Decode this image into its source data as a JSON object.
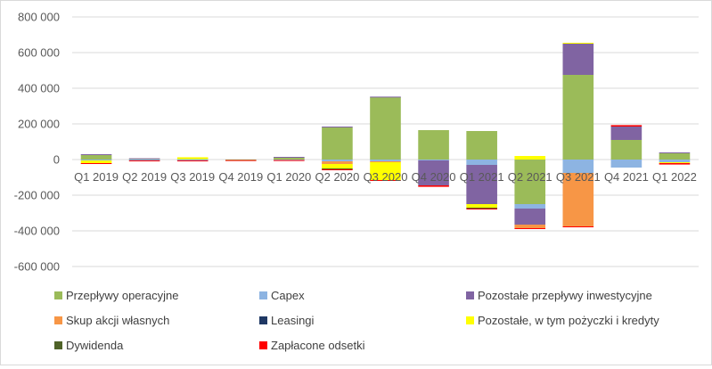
{
  "chart_data": {
    "type": "bar",
    "stacked": true,
    "categories": [
      "Q1 2019",
      "Q2 2019",
      "Q3 2019",
      "Q4 2019",
      "Q1 2020",
      "Q2 2020",
      "Q3 2020",
      "Q4 2020",
      "Q1 2021",
      "Q2 2021",
      "Q3 2021",
      "Q4 2021",
      "Q1 2022"
    ],
    "ylim": [
      -600000,
      800000
    ],
    "yticks": [
      800000,
      600000,
      400000,
      200000,
      0,
      -200000,
      -400000,
      -600000
    ],
    "ytick_labels": [
      "800 000",
      "600 000",
      "400 000",
      "200 000",
      "0",
      "-200 000",
      "-400 000",
      "-600 000"
    ],
    "grid": true,
    "legend_position": "bottom",
    "series": [
      {
        "name": "Przepływy operacyjne",
        "color": "#9bbb59",
        "values": [
          25000,
          2000,
          3000,
          -3000,
          10000,
          180000,
          350000,
          165000,
          160000,
          -250000,
          475000,
          110000,
          35000
        ]
      },
      {
        "name": "Capex",
        "color": "#8db4e2",
        "values": [
          -5000,
          -5000,
          -5000,
          0,
          -3000,
          -10000,
          -10000,
          -5000,
          -30000,
          -25000,
          -75000,
          -45000,
          -15000
        ]
      },
      {
        "name": "Pozostałe przepływy inwestycyjne",
        "color": "#8064a2",
        "values": [
          5000,
          5000,
          0,
          0,
          5000,
          5000,
          3000,
          -140000,
          -220000,
          -90000,
          175000,
          75000,
          5000
        ]
      },
      {
        "name": "Skup akcji własnych",
        "color": "#f79646",
        "values": [
          0,
          0,
          0,
          0,
          0,
          -15000,
          -5000,
          0,
          0,
          -20000,
          -300000,
          0,
          0
        ]
      },
      {
        "name": "Leasingi",
        "color": "#1f3864",
        "values": [
          0,
          0,
          0,
          0,
          0,
          0,
          0,
          0,
          0,
          0,
          0,
          0,
          0
        ]
      },
      {
        "name": "Pozostałe, w tym pożyczki i kredyty",
        "color": "#ffff00",
        "values": [
          -15000,
          0,
          10000,
          0,
          0,
          -25000,
          -100000,
          0,
          -20000,
          20000,
          5000,
          0,
          -5000
        ]
      },
      {
        "name": "Dywidenda",
        "color": "#4f6228",
        "values": [
          0,
          0,
          0,
          0,
          0,
          -5000,
          0,
          0,
          -5000,
          0,
          0,
          0,
          0
        ]
      },
      {
        "name": "Zapłacone odsetki",
        "color": "#ff0000",
        "values": [
          -5000,
          -5000,
          -5000,
          -5000,
          -5000,
          -5000,
          -5000,
          -8000,
          -5000,
          -5000,
          -5000,
          8000,
          -8000
        ]
      }
    ]
  }
}
